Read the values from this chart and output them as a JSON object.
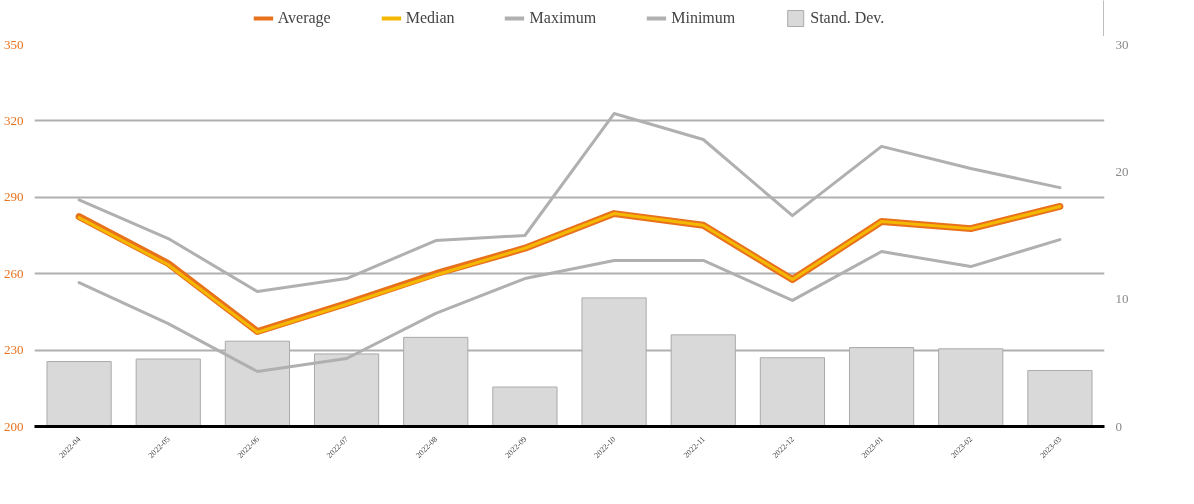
{
  "chart_data": {
    "type": "line",
    "categories": [
      "2022-04",
      "2022-05",
      "2022-06",
      "2022-07",
      "2022-08",
      "2022-09",
      "2022-10",
      "2022-11",
      "2022-12",
      "2023-01",
      "2023-02",
      "2023-03"
    ],
    "series": [
      {
        "name": "Average",
        "color": "#e8711c",
        "values": [
          282.4,
          264,
          237.3,
          248.3,
          260,
          270,
          283.6,
          279,
          257.7,
          280.5,
          277.7,
          286.4
        ]
      },
      {
        "name": "Median",
        "color": "#f5b800",
        "values": [
          282,
          263.5,
          237,
          248,
          259.5,
          270,
          283.6,
          279,
          257.7,
          280.5,
          277.7,
          286.4
        ]
      },
      {
        "name": "Maximum",
        "color": "#b0b0b0",
        "values": [
          289,
          273.8,
          253,
          258.1,
          273,
          275,
          322.9,
          312.7,
          282.8,
          310,
          301.3,
          293.8
        ]
      },
      {
        "name": "Minimum",
        "color": "#b0b0b0",
        "values": [
          256.5,
          240.4,
          221.6,
          226.7,
          244.4,
          258.1,
          265.2,
          265.2,
          249.5,
          268.7,
          262.8,
          273.4
        ]
      },
      {
        "name": "Stand. Dev.",
        "type": "bar",
        "axis": "y2",
        "color": "#d9d9d9",
        "values": [
          5.1,
          5.3,
          6.7,
          5.7,
          7.0,
          3.1,
          10.1,
          7.2,
          5.4,
          6.2,
          6.1,
          4.4
        ]
      }
    ],
    "ylim": [
      200,
      350
    ],
    "yticks": [
      200,
      230,
      260,
      290,
      320,
      350
    ],
    "y2lim": [
      0,
      30
    ],
    "y2ticks": [
      0,
      10,
      20,
      30
    ],
    "grid": "y",
    "legend": "top",
    "marker": "none",
    "line_style": "solid"
  }
}
